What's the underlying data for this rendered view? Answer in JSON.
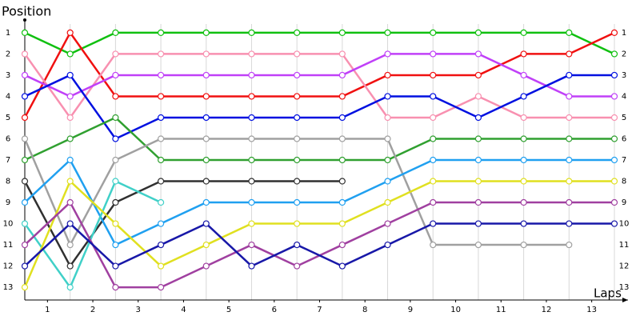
{
  "chart_data": {
    "type": "line",
    "y_label": "Position",
    "x_label": "Laps",
    "x": [
      0,
      1,
      2,
      3,
      4,
      5,
      6,
      7,
      8,
      9,
      10,
      11,
      12,
      13
    ],
    "xlim": [
      0,
      13.3
    ],
    "xticks": [
      {
        "value": 0.5,
        "label": "1"
      },
      {
        "value": 1.5,
        "label": "2"
      },
      {
        "value": 2.5,
        "label": "3"
      },
      {
        "value": 3.5,
        "label": "4"
      },
      {
        "value": 4.5,
        "label": "5"
      },
      {
        "value": 5.5,
        "label": "6"
      },
      {
        "value": 6.5,
        "label": "7"
      },
      {
        "value": 7.5,
        "label": "8"
      },
      {
        "value": 8.5,
        "label": "9"
      },
      {
        "value": 9.5,
        "label": "10"
      },
      {
        "value": 10.5,
        "label": "11"
      },
      {
        "value": 11.5,
        "label": "12"
      },
      {
        "value": 12.5,
        "label": "13"
      }
    ],
    "ylim": [
      13.6,
      0.4
    ],
    "yticks": [
      1,
      2,
      3,
      4,
      5,
      6,
      7,
      8,
      9,
      10,
      11,
      12,
      13
    ],
    "series": [
      {
        "color": "#10c010",
        "values": [
          1,
          2,
          1,
          1,
          1,
          1,
          1,
          1,
          1,
          1,
          1,
          1,
          1,
          2
        ]
      },
      {
        "color": "#f01010",
        "values": [
          5,
          1,
          4,
          4,
          4,
          4,
          4,
          4,
          3,
          3,
          3,
          2,
          2,
          1
        ]
      },
      {
        "color": "#f890b0",
        "values": [
          2,
          5,
          2,
          2,
          2,
          2,
          2,
          2,
          5,
          5,
          4,
          5,
          5,
          5
        ]
      },
      {
        "color": "#c040f8",
        "values": [
          3,
          4,
          3,
          3,
          3,
          3,
          3,
          3,
          2,
          2,
          2,
          3,
          4,
          4
        ]
      },
      {
        "color": "#0010e0",
        "values": [
          4,
          3,
          6,
          5,
          5,
          5,
          5,
          5,
          4,
          4,
          5,
          4,
          3,
          3
        ]
      },
      {
        "color": "#30a030",
        "values": [
          7,
          6,
          5,
          7,
          7,
          7,
          7,
          7,
          7,
          6,
          6,
          6,
          6,
          6
        ]
      },
      {
        "color": "#a0a0a0",
        "values": [
          6,
          11,
          7,
          6,
          6,
          6,
          6,
          6,
          6,
          11,
          11,
          11,
          11,
          null
        ]
      },
      {
        "color": "#303030",
        "values": [
          8,
          12,
          9,
          8,
          8,
          8,
          8,
          8,
          null,
          null,
          null,
          null,
          null,
          null
        ]
      },
      {
        "color": "#20a0f0",
        "values": [
          9,
          7,
          11,
          10,
          9,
          9,
          9,
          9,
          8,
          7,
          7,
          7,
          7,
          7
        ]
      },
      {
        "color": "#40d0c8",
        "values": [
          10,
          13,
          8,
          9,
          null,
          null,
          null,
          null,
          null,
          null,
          null,
          null,
          null,
          null
        ]
      },
      {
        "color": "#e0e020",
        "values": [
          13,
          8,
          10,
          12,
          11,
          10,
          10,
          10,
          9,
          8,
          8,
          8,
          8,
          8
        ]
      },
      {
        "color": "#a040a0",
        "values": [
          11,
          9,
          13,
          13,
          12,
          11,
          12,
          11,
          10,
          9,
          9,
          9,
          9,
          9
        ]
      },
      {
        "color": "#1818a8",
        "values": [
          12,
          10,
          12,
          11,
          10,
          12,
          11,
          12,
          11,
          10,
          10,
          10,
          10,
          10
        ]
      }
    ]
  }
}
